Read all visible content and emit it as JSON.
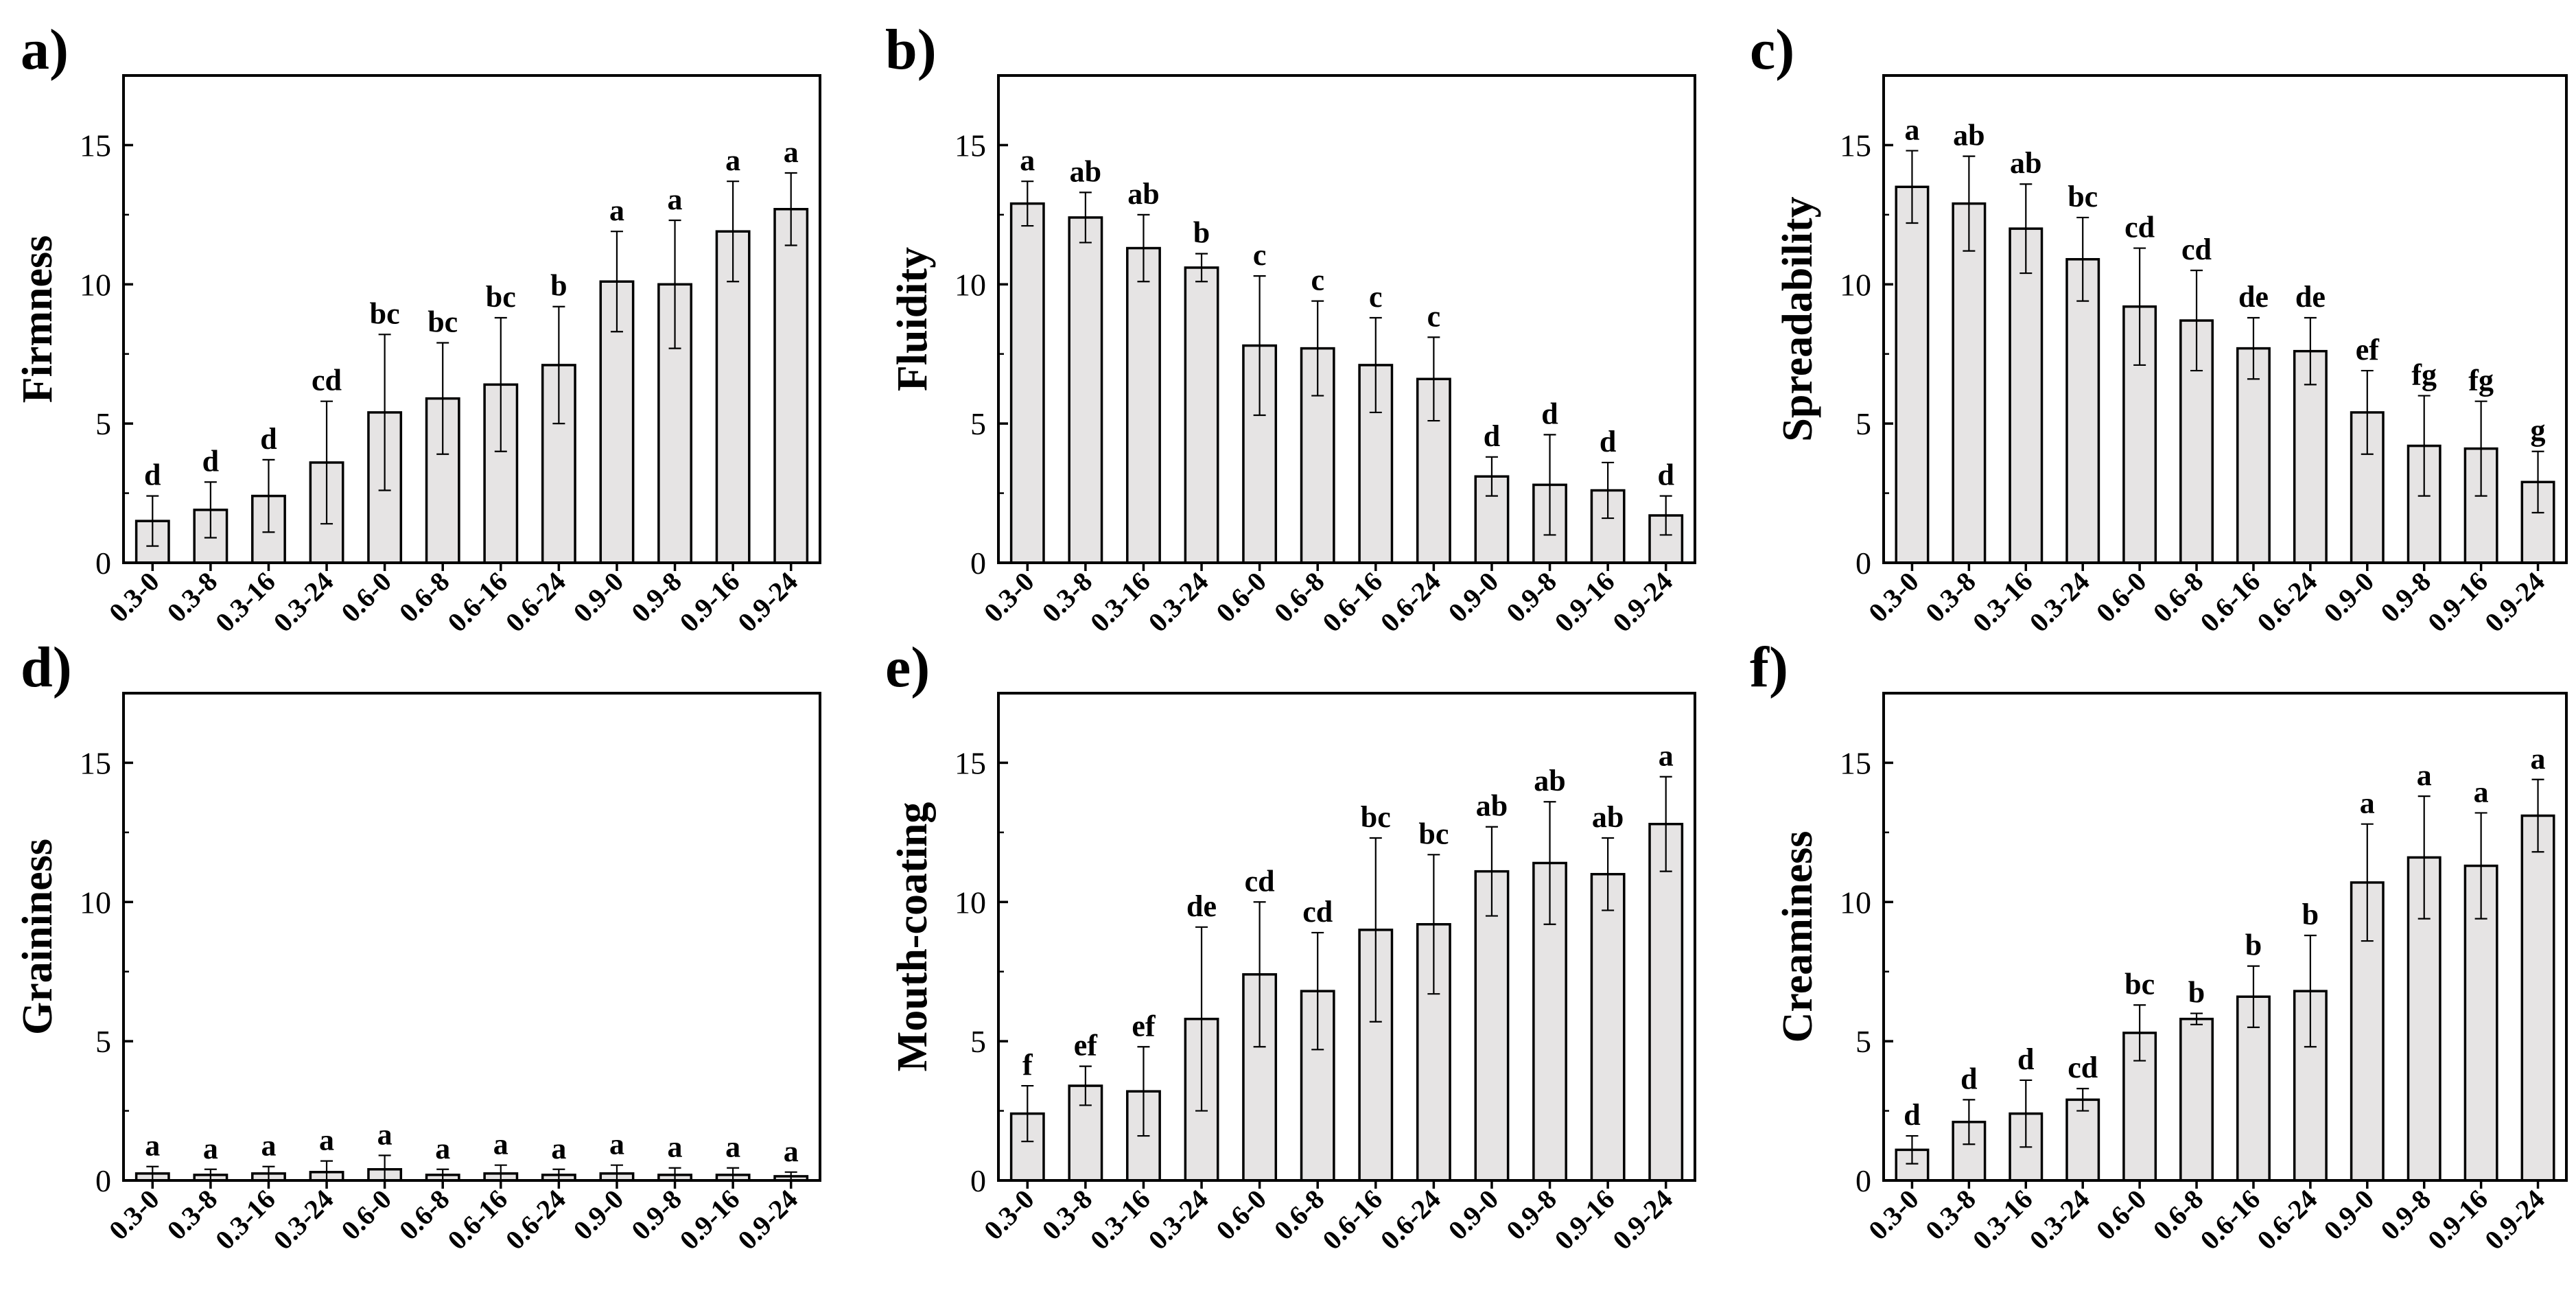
{
  "colors": {
    "bar_fill": "#e6e4e4",
    "stroke": "#000000"
  },
  "chart_data": [
    {
      "type": "bar",
      "panel_label": "a)",
      "ylabel": "Firmness",
      "ylim": [
        0,
        17.5
      ],
      "yticks": [
        0,
        5,
        10,
        15
      ],
      "categories": [
        "0.3-0",
        "0.3-8",
        "0.3-16",
        "0.3-24",
        "0.6-0",
        "0.6-8",
        "0.6-16",
        "0.6-24",
        "0.9-0",
        "0.9-8",
        "0.9-16",
        "0.9-24"
      ],
      "values": [
        1.5,
        1.9,
        2.4,
        3.6,
        5.4,
        5.9,
        6.4,
        7.1,
        10.1,
        10.0,
        11.9,
        12.7
      ],
      "errors": [
        0.9,
        1.0,
        1.3,
        2.2,
        2.8,
        2.0,
        2.4,
        2.1,
        1.8,
        2.3,
        1.8,
        1.3
      ],
      "significance": [
        "d",
        "d",
        "d",
        "cd",
        "bc",
        "bc",
        "bc",
        "b",
        "a",
        "a",
        "a",
        "a"
      ]
    },
    {
      "type": "bar",
      "panel_label": "b)",
      "ylabel": "Fluidity",
      "ylim": [
        0,
        17.5
      ],
      "yticks": [
        0,
        5,
        10,
        15
      ],
      "categories": [
        "0.3-0",
        "0.3-8",
        "0.3-16",
        "0.3-24",
        "0.6-0",
        "0.6-8",
        "0.6-16",
        "0.6-24",
        "0.9-0",
        "0.9-8",
        "0.9-16",
        "0.9-24"
      ],
      "values": [
        12.9,
        12.4,
        11.3,
        10.6,
        7.8,
        7.7,
        7.1,
        6.6,
        3.1,
        2.8,
        2.6,
        1.7
      ],
      "errors": [
        0.8,
        0.9,
        1.2,
        0.5,
        2.5,
        1.7,
        1.7,
        1.5,
        0.7,
        1.8,
        1.0,
        0.7
      ],
      "significance": [
        "a",
        "ab",
        "ab",
        "b",
        "c",
        "c",
        "c",
        "c",
        "d",
        "d",
        "d",
        "d"
      ]
    },
    {
      "type": "bar",
      "panel_label": "c)",
      "ylabel": "Spreadability",
      "ylim": [
        0,
        17.5
      ],
      "yticks": [
        0,
        5,
        10,
        15
      ],
      "categories": [
        "0.3-0",
        "0.3-8",
        "0.3-16",
        "0.3-24",
        "0.6-0",
        "0.6-8",
        "0.6-16",
        "0.6-24",
        "0.9-0",
        "0.9-8",
        "0.9-16",
        "0.9-24"
      ],
      "values": [
        13.5,
        12.9,
        12.0,
        10.9,
        9.2,
        8.7,
        7.7,
        7.6,
        5.4,
        4.2,
        4.1,
        2.9
      ],
      "errors": [
        1.3,
        1.7,
        1.6,
        1.5,
        2.1,
        1.8,
        1.1,
        1.2,
        1.5,
        1.8,
        1.7,
        1.1
      ],
      "significance": [
        "a",
        "ab",
        "ab",
        "bc",
        "cd",
        "cd",
        "de",
        "de",
        "ef",
        "fg",
        "fg",
        "g"
      ]
    },
    {
      "type": "bar",
      "panel_label": "d)",
      "ylabel": "Graininess",
      "ylim": [
        0,
        17.5
      ],
      "yticks": [
        0,
        5,
        10,
        15
      ],
      "categories": [
        "0.3-0",
        "0.3-8",
        "0.3-16",
        "0.3-24",
        "0.6-0",
        "0.6-8",
        "0.6-16",
        "0.6-24",
        "0.9-0",
        "0.9-8",
        "0.9-16",
        "0.9-24"
      ],
      "values": [
        0.25,
        0.2,
        0.25,
        0.3,
        0.4,
        0.2,
        0.25,
        0.2,
        0.25,
        0.2,
        0.2,
        0.15
      ],
      "errors": [
        0.25,
        0.2,
        0.25,
        0.4,
        0.5,
        0.2,
        0.3,
        0.2,
        0.3,
        0.25,
        0.25,
        0.15
      ],
      "significance": [
        "a",
        "a",
        "a",
        "a",
        "a",
        "a",
        "a",
        "a",
        "a",
        "a",
        "a",
        "a"
      ]
    },
    {
      "type": "bar",
      "panel_label": "e)",
      "ylabel": "Mouth-coating",
      "ylim": [
        0,
        17.5
      ],
      "yticks": [
        0,
        5,
        10,
        15
      ],
      "categories": [
        "0.3-0",
        "0.3-8",
        "0.3-16",
        "0.3-24",
        "0.6-0",
        "0.6-8",
        "0.6-16",
        "0.6-24",
        "0.9-0",
        "0.9-8",
        "0.9-16",
        "0.9-24"
      ],
      "values": [
        2.4,
        3.4,
        3.2,
        5.8,
        7.4,
        6.8,
        9.0,
        9.2,
        11.1,
        11.4,
        11.0,
        12.8
      ],
      "errors": [
        1.0,
        0.7,
        1.6,
        3.3,
        2.6,
        2.1,
        3.3,
        2.5,
        1.6,
        2.2,
        1.3,
        1.7
      ],
      "significance": [
        "f",
        "ef",
        "ef",
        "de",
        "cd",
        "cd",
        "bc",
        "bc",
        "ab",
        "ab",
        "ab",
        "a"
      ]
    },
    {
      "type": "bar",
      "panel_label": "f)",
      "ylabel": "Creaminess",
      "ylim": [
        0,
        17.5
      ],
      "yticks": [
        0,
        5,
        10,
        15
      ],
      "categories": [
        "0.3-0",
        "0.3-8",
        "0.3-16",
        "0.3-24",
        "0.6-0",
        "0.6-8",
        "0.6-16",
        "0.6-24",
        "0.9-0",
        "0.9-8",
        "0.9-16",
        "0.9-24"
      ],
      "values": [
        1.1,
        2.1,
        2.4,
        2.9,
        5.3,
        5.8,
        6.6,
        6.8,
        10.7,
        11.6,
        11.3,
        13.1
      ],
      "errors": [
        0.5,
        0.8,
        1.2,
        0.4,
        1.0,
        0.2,
        1.1,
        2.0,
        2.1,
        2.2,
        1.9,
        1.3
      ],
      "significance": [
        "d",
        "d",
        "d",
        "cd",
        "bc",
        "b",
        "b",
        "b",
        "a",
        "a",
        "a",
        "a"
      ]
    }
  ]
}
